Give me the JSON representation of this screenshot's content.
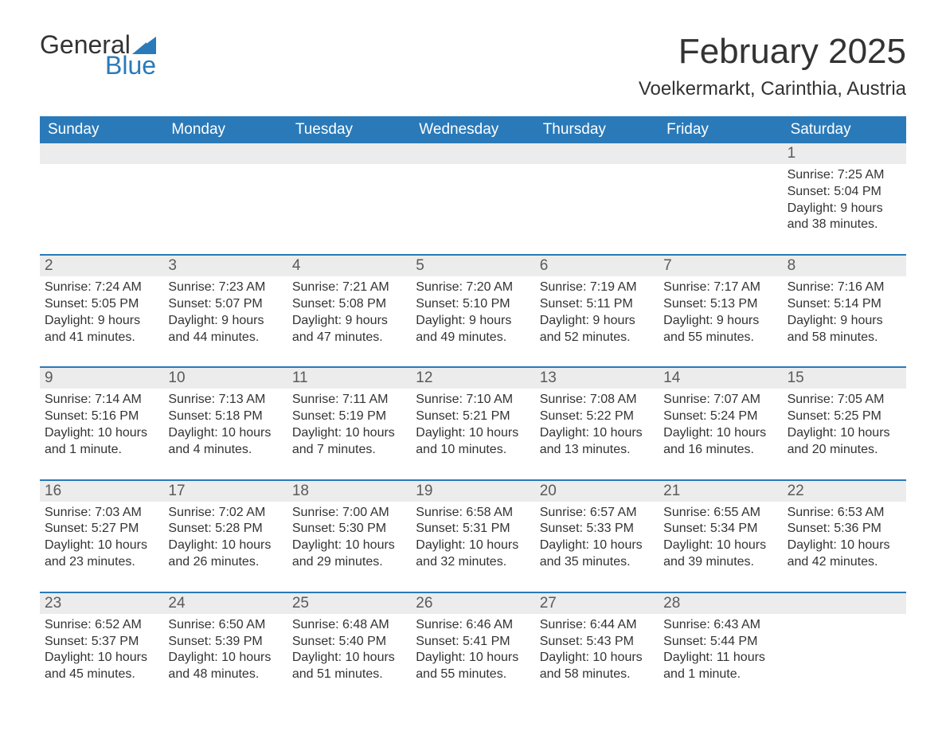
{
  "colors": {
    "header_bg": "#2a7ab9",
    "header_text": "#ffffff",
    "daynum_bg": "#ececec",
    "daynum_text": "#5a5a5a",
    "border": "#2a7ab9",
    "body_text": "#333333",
    "page_bg": "#ffffff",
    "logo_dark": "#333333",
    "logo_blue": "#2a7ab9"
  },
  "logo": {
    "part1": "General",
    "part2": "Blue"
  },
  "title": "February 2025",
  "location": "Voelkermarkt, Carinthia, Austria",
  "weekdays": [
    "Sunday",
    "Monday",
    "Tuesday",
    "Wednesday",
    "Thursday",
    "Friday",
    "Saturday"
  ],
  "weeks": [
    [
      null,
      null,
      null,
      null,
      null,
      null,
      {
        "n": "1",
        "sr": "Sunrise: 7:25 AM",
        "ss": "Sunset: 5:04 PM",
        "dl": "Daylight: 9 hours and 38 minutes."
      }
    ],
    [
      {
        "n": "2",
        "sr": "Sunrise: 7:24 AM",
        "ss": "Sunset: 5:05 PM",
        "dl": "Daylight: 9 hours and 41 minutes."
      },
      {
        "n": "3",
        "sr": "Sunrise: 7:23 AM",
        "ss": "Sunset: 5:07 PM",
        "dl": "Daylight: 9 hours and 44 minutes."
      },
      {
        "n": "4",
        "sr": "Sunrise: 7:21 AM",
        "ss": "Sunset: 5:08 PM",
        "dl": "Daylight: 9 hours and 47 minutes."
      },
      {
        "n": "5",
        "sr": "Sunrise: 7:20 AM",
        "ss": "Sunset: 5:10 PM",
        "dl": "Daylight: 9 hours and 49 minutes."
      },
      {
        "n": "6",
        "sr": "Sunrise: 7:19 AM",
        "ss": "Sunset: 5:11 PM",
        "dl": "Daylight: 9 hours and 52 minutes."
      },
      {
        "n": "7",
        "sr": "Sunrise: 7:17 AM",
        "ss": "Sunset: 5:13 PM",
        "dl": "Daylight: 9 hours and 55 minutes."
      },
      {
        "n": "8",
        "sr": "Sunrise: 7:16 AM",
        "ss": "Sunset: 5:14 PM",
        "dl": "Daylight: 9 hours and 58 minutes."
      }
    ],
    [
      {
        "n": "9",
        "sr": "Sunrise: 7:14 AM",
        "ss": "Sunset: 5:16 PM",
        "dl": "Daylight: 10 hours and 1 minute."
      },
      {
        "n": "10",
        "sr": "Sunrise: 7:13 AM",
        "ss": "Sunset: 5:18 PM",
        "dl": "Daylight: 10 hours and 4 minutes."
      },
      {
        "n": "11",
        "sr": "Sunrise: 7:11 AM",
        "ss": "Sunset: 5:19 PM",
        "dl": "Daylight: 10 hours and 7 minutes."
      },
      {
        "n": "12",
        "sr": "Sunrise: 7:10 AM",
        "ss": "Sunset: 5:21 PM",
        "dl": "Daylight: 10 hours and 10 minutes."
      },
      {
        "n": "13",
        "sr": "Sunrise: 7:08 AM",
        "ss": "Sunset: 5:22 PM",
        "dl": "Daylight: 10 hours and 13 minutes."
      },
      {
        "n": "14",
        "sr": "Sunrise: 7:07 AM",
        "ss": "Sunset: 5:24 PM",
        "dl": "Daylight: 10 hours and 16 minutes."
      },
      {
        "n": "15",
        "sr": "Sunrise: 7:05 AM",
        "ss": "Sunset: 5:25 PM",
        "dl": "Daylight: 10 hours and 20 minutes."
      }
    ],
    [
      {
        "n": "16",
        "sr": "Sunrise: 7:03 AM",
        "ss": "Sunset: 5:27 PM",
        "dl": "Daylight: 10 hours and 23 minutes."
      },
      {
        "n": "17",
        "sr": "Sunrise: 7:02 AM",
        "ss": "Sunset: 5:28 PM",
        "dl": "Daylight: 10 hours and 26 minutes."
      },
      {
        "n": "18",
        "sr": "Sunrise: 7:00 AM",
        "ss": "Sunset: 5:30 PM",
        "dl": "Daylight: 10 hours and 29 minutes."
      },
      {
        "n": "19",
        "sr": "Sunrise: 6:58 AM",
        "ss": "Sunset: 5:31 PM",
        "dl": "Daylight: 10 hours and 32 minutes."
      },
      {
        "n": "20",
        "sr": "Sunrise: 6:57 AM",
        "ss": "Sunset: 5:33 PM",
        "dl": "Daylight: 10 hours and 35 minutes."
      },
      {
        "n": "21",
        "sr": "Sunrise: 6:55 AM",
        "ss": "Sunset: 5:34 PM",
        "dl": "Daylight: 10 hours and 39 minutes."
      },
      {
        "n": "22",
        "sr": "Sunrise: 6:53 AM",
        "ss": "Sunset: 5:36 PM",
        "dl": "Daylight: 10 hours and 42 minutes."
      }
    ],
    [
      {
        "n": "23",
        "sr": "Sunrise: 6:52 AM",
        "ss": "Sunset: 5:37 PM",
        "dl": "Daylight: 10 hours and 45 minutes."
      },
      {
        "n": "24",
        "sr": "Sunrise: 6:50 AM",
        "ss": "Sunset: 5:39 PM",
        "dl": "Daylight: 10 hours and 48 minutes."
      },
      {
        "n": "25",
        "sr": "Sunrise: 6:48 AM",
        "ss": "Sunset: 5:40 PM",
        "dl": "Daylight: 10 hours and 51 minutes."
      },
      {
        "n": "26",
        "sr": "Sunrise: 6:46 AM",
        "ss": "Sunset: 5:41 PM",
        "dl": "Daylight: 10 hours and 55 minutes."
      },
      {
        "n": "27",
        "sr": "Sunrise: 6:44 AM",
        "ss": "Sunset: 5:43 PM",
        "dl": "Daylight: 10 hours and 58 minutes."
      },
      {
        "n": "28",
        "sr": "Sunrise: 6:43 AM",
        "ss": "Sunset: 5:44 PM",
        "dl": "Daylight: 11 hours and 1 minute."
      },
      null
    ]
  ]
}
